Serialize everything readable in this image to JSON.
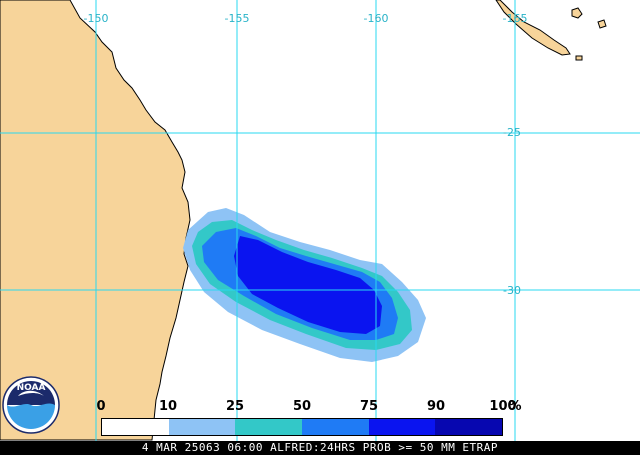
{
  "map": {
    "colors": {
      "land": "#f7d49a",
      "ocean": "#ffffff",
      "coast": "#000000",
      "grid": "#29d8f0"
    },
    "longitude_labels": [
      "-150",
      "-155",
      "-160",
      "-165"
    ],
    "latitude_labels": [
      "-25",
      "-30"
    ]
  },
  "legend": {
    "labels": [
      "0",
      "10",
      "25",
      "50",
      "75",
      "90",
      "100"
    ],
    "unit": "%",
    "colors": [
      "#ffffff",
      "#8ec3f5",
      "#33c8c8",
      "#1f7bf5",
      "#0a14f0",
      "#0707b0"
    ]
  },
  "status": {
    "text": "4 MAR 25063 06:00 ALFRED:24HRS PROB >= 50 MM ETRAP"
  },
  "logo": {
    "text": "NOAA",
    "colors": {
      "navy": "#1b2a6b",
      "sky": "#3aa0e6",
      "white": "#ffffff"
    }
  }
}
